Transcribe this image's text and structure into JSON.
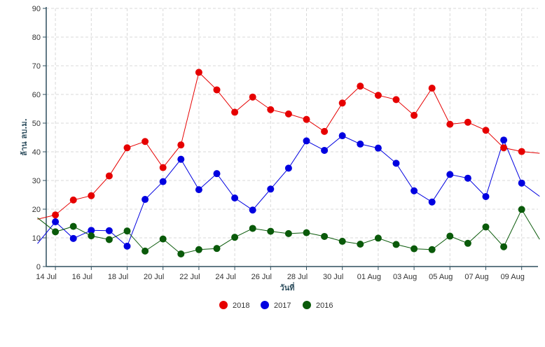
{
  "chart_data": {
    "type": "line",
    "xlabel": "วันที่",
    "ylabel": "ล้าน ลบ.ม.",
    "ylim": [
      0,
      90
    ],
    "yticks": [
      0,
      10,
      20,
      30,
      40,
      50,
      60,
      70,
      80,
      90
    ],
    "grid": true,
    "legend_position": "bottom-center",
    "x_tick_labels": [
      "14 Jul",
      "16 Jul",
      "18 Jul",
      "20 Jul",
      "22 Jul",
      "24 Jul",
      "26 Jul",
      "28 Jul",
      "30 Jul",
      "01 Aug",
      "03 Aug",
      "05 Aug",
      "07 Aug",
      "09 Aug"
    ],
    "x": [
      "13 Jul",
      "14 Jul",
      "15 Jul",
      "16 Jul",
      "17 Jul",
      "18 Jul",
      "19 Jul",
      "20 Jul",
      "21 Jul",
      "22 Jul",
      "23 Jul",
      "24 Jul",
      "25 Jul",
      "26 Jul",
      "27 Jul",
      "28 Jul",
      "29 Jul",
      "30 Jul",
      "31 Jul",
      "01 Aug",
      "02 Aug",
      "03 Aug",
      "04 Aug",
      "05 Aug",
      "06 Aug",
      "07 Aug",
      "08 Aug",
      "09 Aug",
      "10 Aug"
    ],
    "marker_dates": [
      "14 Jul",
      "15 Jul",
      "16 Jul",
      "17 Jul",
      "18 Jul",
      "19 Jul",
      "20 Jul",
      "21 Jul",
      "22 Jul",
      "23 Jul",
      "24 Jul",
      "25 Jul",
      "26 Jul",
      "27 Jul",
      "28 Jul",
      "29 Jul",
      "30 Jul",
      "31 Jul",
      "01 Aug",
      "02 Aug",
      "03 Aug",
      "04 Aug",
      "05 Aug",
      "06 Aug",
      "07 Aug",
      "08 Aug",
      "09 Aug"
    ],
    "series": [
      {
        "name": "2018",
        "color": "#e60000",
        "values": [
          16.5,
          18.0,
          23.2,
          24.7,
          31.6,
          41.4,
          43.6,
          34.5,
          42.4,
          67.7,
          61.6,
          53.8,
          59.1,
          54.7,
          53.2,
          51.3,
          47.1,
          57.0,
          62.9,
          59.7,
          58.2,
          52.7,
          62.2,
          49.6,
          50.3,
          47.5,
          41.4,
          40.1,
          39.5
        ]
      },
      {
        "name": "2017",
        "color": "#0000e0",
        "values": [
          8.0,
          15.6,
          9.8,
          12.6,
          12.5,
          7.1,
          23.4,
          29.6,
          37.4,
          26.8,
          32.4,
          23.9,
          19.7,
          27.0,
          34.3,
          43.8,
          40.5,
          45.6,
          42.7,
          41.3,
          36.0,
          26.4,
          22.5,
          32.1,
          30.8,
          24.4,
          44.1,
          29.1,
          24.5
        ]
      },
      {
        "name": "2016",
        "color": "#0a5a0a",
        "values": [
          17.0,
          12.1,
          14.0,
          10.7,
          9.4,
          12.4,
          5.4,
          9.6,
          4.4,
          5.9,
          6.3,
          10.2,
          13.3,
          12.3,
          11.5,
          11.8,
          10.5,
          8.8,
          7.8,
          9.9,
          7.7,
          6.2,
          5.9,
          10.6,
          8.1,
          13.8,
          6.9,
          19.9,
          9.5
        ]
      }
    ]
  }
}
